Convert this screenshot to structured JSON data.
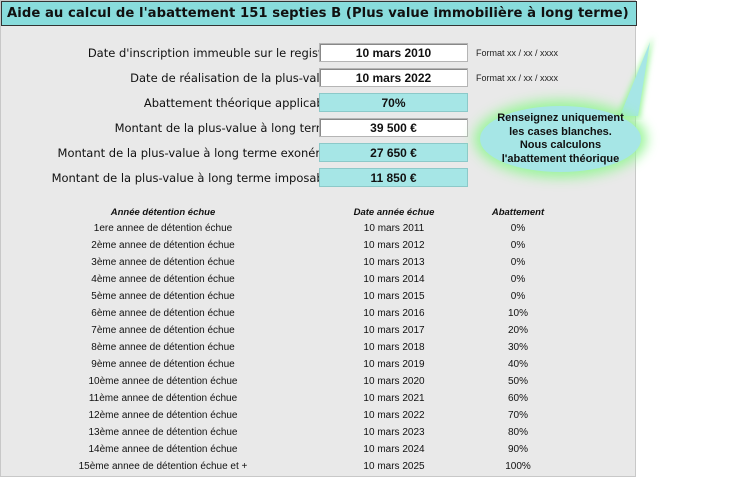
{
  "title": "Aide au calcul de l'abattement 151 septies B (Plus value immobilière à long terme)",
  "fields": [
    {
      "label": "Date d'inscription immeuble sur le registre",
      "value": "10 mars 2010",
      "kind": "input",
      "format_hint": "Format xx / xx / xxxx"
    },
    {
      "label": "Date de réalisation de la plus-value",
      "value": "10 mars 2022",
      "kind": "input",
      "format_hint": "Format xx / xx / xxxx"
    },
    {
      "label": "Abattement théorique applicable",
      "value": "70%",
      "kind": "computed",
      "format_hint": ""
    },
    {
      "label": "Montant de la plus-value à long terme",
      "value": "39 500 €",
      "kind": "input",
      "format_hint": ""
    },
    {
      "label": "Montant de la plus-value à long terme exonérée",
      "value": "27 650 €",
      "kind": "computed",
      "format_hint": ""
    },
    {
      "label": "Montant de la plus-value à long terme imposable",
      "value": "11 850 €",
      "kind": "computed",
      "format_hint": ""
    }
  ],
  "callout": {
    "lines": [
      "Renseignez uniquement",
      "les cases blanches.",
      "Nous calculons",
      "l'abattement théorique"
    ]
  },
  "table": {
    "headers": [
      "Année détention échue",
      "Date année échue",
      "Abattement"
    ],
    "rows": [
      [
        "1ere annee de détention échue",
        "10 mars 2011",
        "0%"
      ],
      [
        "2ème annee de détention échue",
        "10 mars 2012",
        "0%"
      ],
      [
        "3ème annee de détention échue",
        "10 mars 2013",
        "0%"
      ],
      [
        "4ème annee de détention échue",
        "10 mars 2014",
        "0%"
      ],
      [
        "5ème annee de détention échue",
        "10 mars 2015",
        "0%"
      ],
      [
        "6ème annee de détention échue",
        "10 mars 2016",
        "10%"
      ],
      [
        "7ème annee de détention échue",
        "10 mars 2017",
        "20%"
      ],
      [
        "8ème annee de détention échue",
        "10 mars 2018",
        "30%"
      ],
      [
        "9ème annee de détention échue",
        "10 mars 2019",
        "40%"
      ],
      [
        "10ème annee de détention échue",
        "10 mars 2020",
        "50%"
      ],
      [
        "11ème annee de détention échue",
        "10 mars 2021",
        "60%"
      ],
      [
        "12ème annee de détention échue",
        "10 mars 2022",
        "70%"
      ],
      [
        "13ème annee de détention échue",
        "10 mars 2023",
        "80%"
      ],
      [
        "14ème annee de détention échue",
        "10 mars 2024",
        "90%"
      ],
      [
        "15ème annee de détention échue et +",
        "10 mars 2025",
        "100%"
      ]
    ]
  },
  "colors": {
    "title_bg": "#88dcdc",
    "computed_bg": "#a6e6e6",
    "callout_glow": "#9cf59c",
    "sheet_bg": "#e9e9e9"
  }
}
